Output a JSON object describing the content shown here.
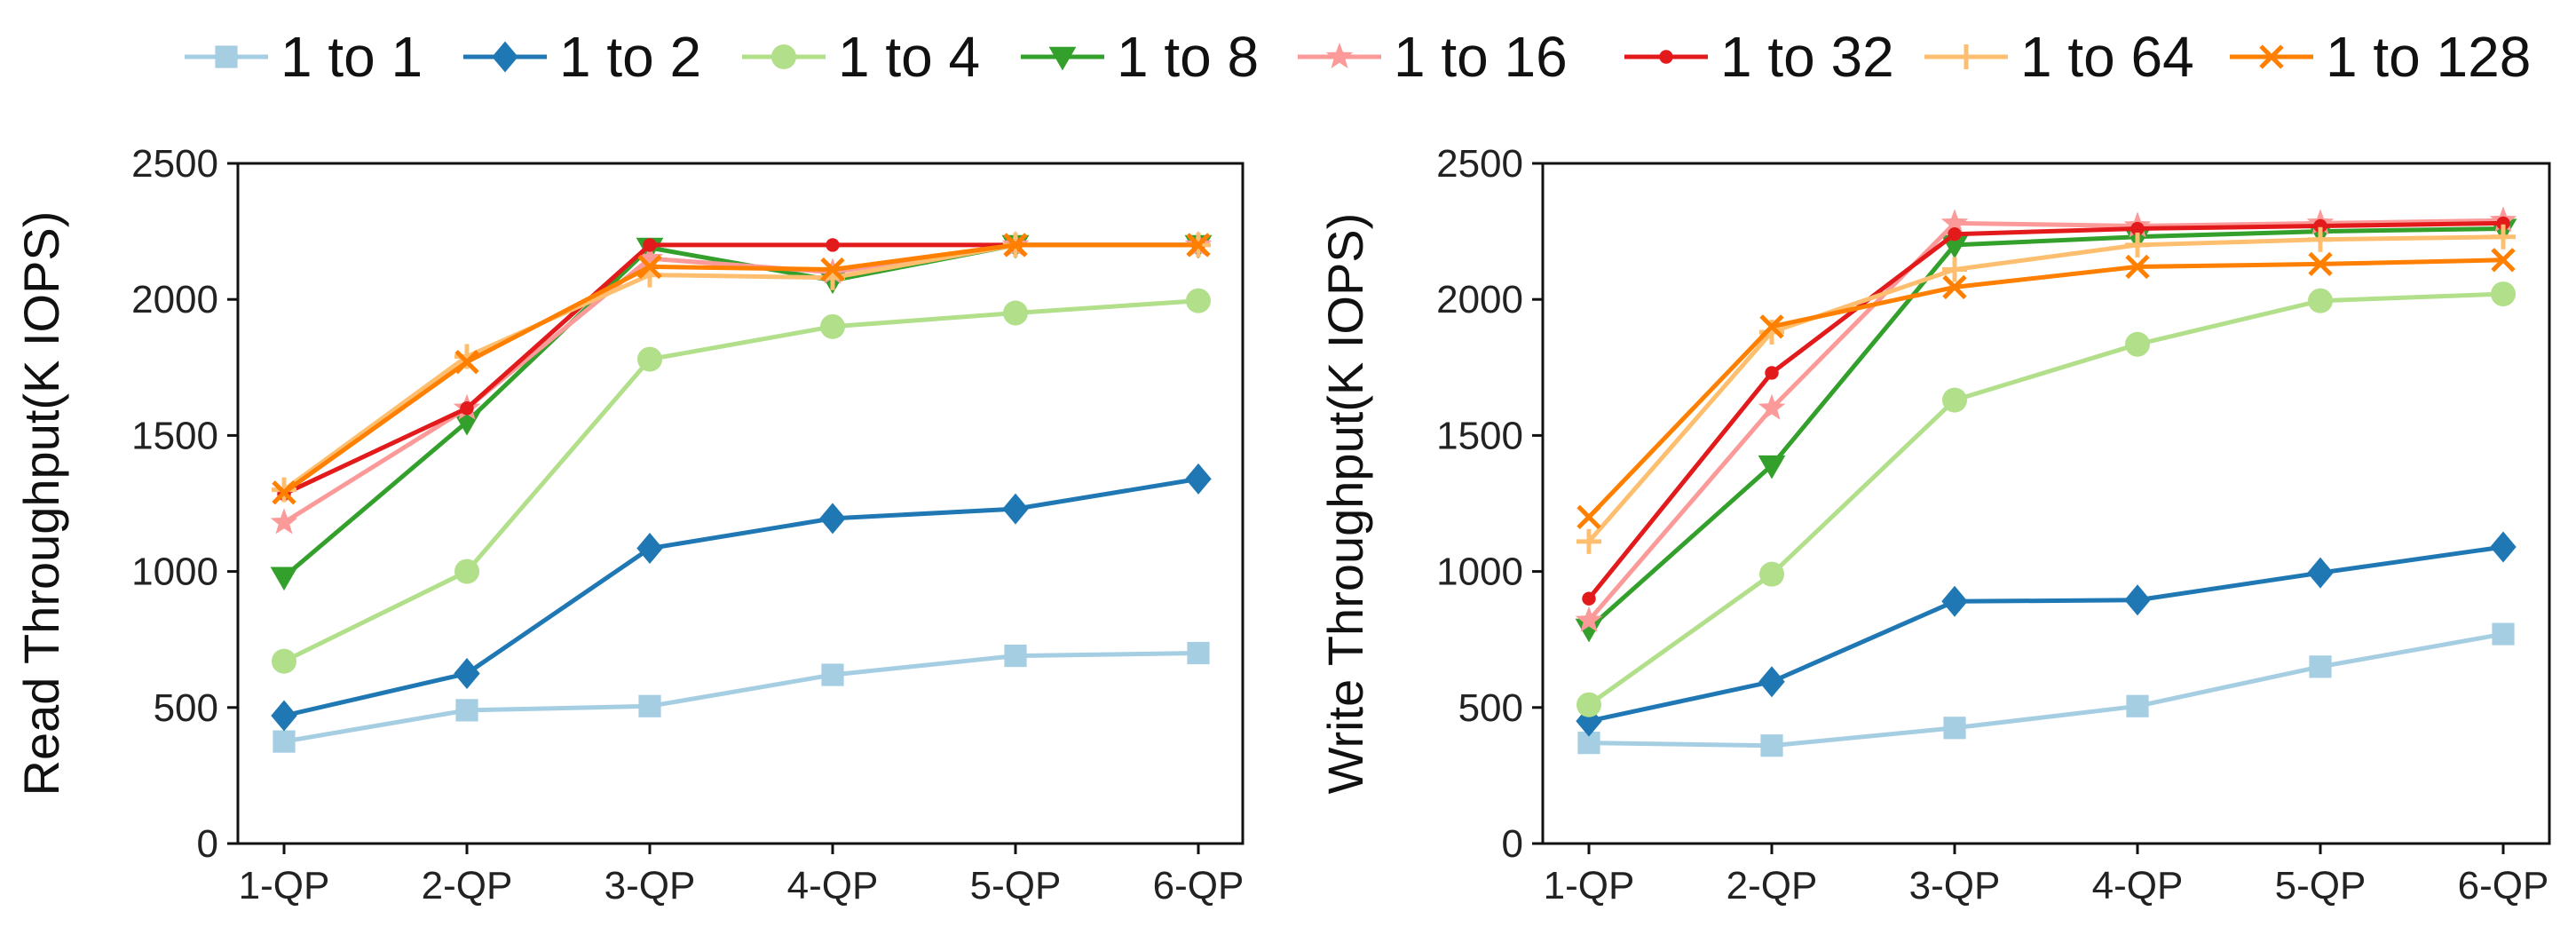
{
  "legend": {
    "entries": [
      {
        "name": "1 to 1",
        "color": "#a6cee3",
        "marker": "square"
      },
      {
        "name": "1 to 2",
        "color": "#1f78b4",
        "marker": "diamond"
      },
      {
        "name": "1 to 4",
        "color": "#b2df8a",
        "marker": "circle"
      },
      {
        "name": "1 to 8",
        "color": "#33a02c",
        "marker": "triangle-down"
      },
      {
        "name": "1 to 16",
        "color": "#fb9a99",
        "marker": "star"
      },
      {
        "name": "1 to 32",
        "color": "#e31a1c",
        "marker": "dot"
      },
      {
        "name": "1 to 64",
        "color": "#fdbf6f",
        "marker": "plus"
      },
      {
        "name": "1 to 128",
        "color": "#ff7f00",
        "marker": "x"
      }
    ]
  },
  "chart_data": [
    {
      "type": "line",
      "title": "",
      "xlabel": "",
      "ylabel": "Read Throughput(K IOPS)",
      "categories": [
        "1-QP",
        "2-QP",
        "3-QP",
        "4-QP",
        "5-QP",
        "6-QP"
      ],
      "ylim": [
        0,
        2500
      ],
      "yticks": [
        0,
        500,
        1000,
        1500,
        2000,
        2500
      ],
      "series": [
        {
          "name": "1 to 1",
          "values": [
            375,
            490,
            505,
            620,
            690,
            700
          ]
        },
        {
          "name": "1 to 2",
          "values": [
            470,
            625,
            1085,
            1195,
            1230,
            1340
          ]
        },
        {
          "name": "1 to 4",
          "values": [
            670,
            1000,
            1780,
            1900,
            1950,
            1995
          ]
        },
        {
          "name": "1 to 8",
          "values": [
            980,
            1550,
            2190,
            2070,
            2200,
            2200
          ]
        },
        {
          "name": "1 to 16",
          "values": [
            1180,
            1600,
            2150,
            2100,
            2200,
            2200
          ]
        },
        {
          "name": "1 to 32",
          "values": [
            1285,
            1600,
            2200,
            2200,
            2200,
            2200
          ]
        },
        {
          "name": "1 to 64",
          "values": [
            1300,
            1790,
            2090,
            2080,
            2200,
            2200
          ]
        },
        {
          "name": "1 to 128",
          "values": [
            1290,
            1770,
            2120,
            2110,
            2200,
            2200
          ]
        }
      ]
    },
    {
      "type": "line",
      "title": "",
      "xlabel": "",
      "ylabel": "Write Throughput(K IOPS)",
      "categories": [
        "1-QP",
        "2-QP",
        "3-QP",
        "4-QP",
        "5-QP",
        "6-QP"
      ],
      "ylim": [
        0,
        2500
      ],
      "yticks": [
        0,
        500,
        1000,
        1500,
        2000,
        2500
      ],
      "series": [
        {
          "name": "1 to 1",
          "values": [
            370,
            360,
            425,
            505,
            650,
            770
          ]
        },
        {
          "name": "1 to 2",
          "values": [
            450,
            595,
            890,
            895,
            995,
            1090
          ]
        },
        {
          "name": "1 to 4",
          "values": [
            510,
            990,
            1630,
            1835,
            1995,
            2020
          ]
        },
        {
          "name": "1 to 8",
          "values": [
            790,
            1390,
            2200,
            2230,
            2250,
            2260
          ]
        },
        {
          "name": "1 to 16",
          "values": [
            820,
            1600,
            2280,
            2270,
            2280,
            2290
          ]
        },
        {
          "name": "1 to 32",
          "values": [
            900,
            1730,
            2240,
            2260,
            2270,
            2280
          ]
        },
        {
          "name": "1 to 64",
          "values": [
            1110,
            1880,
            2110,
            2200,
            2220,
            2230
          ]
        },
        {
          "name": "1 to 128",
          "values": [
            1200,
            1900,
            2045,
            2120,
            2130,
            2145
          ]
        }
      ]
    }
  ]
}
